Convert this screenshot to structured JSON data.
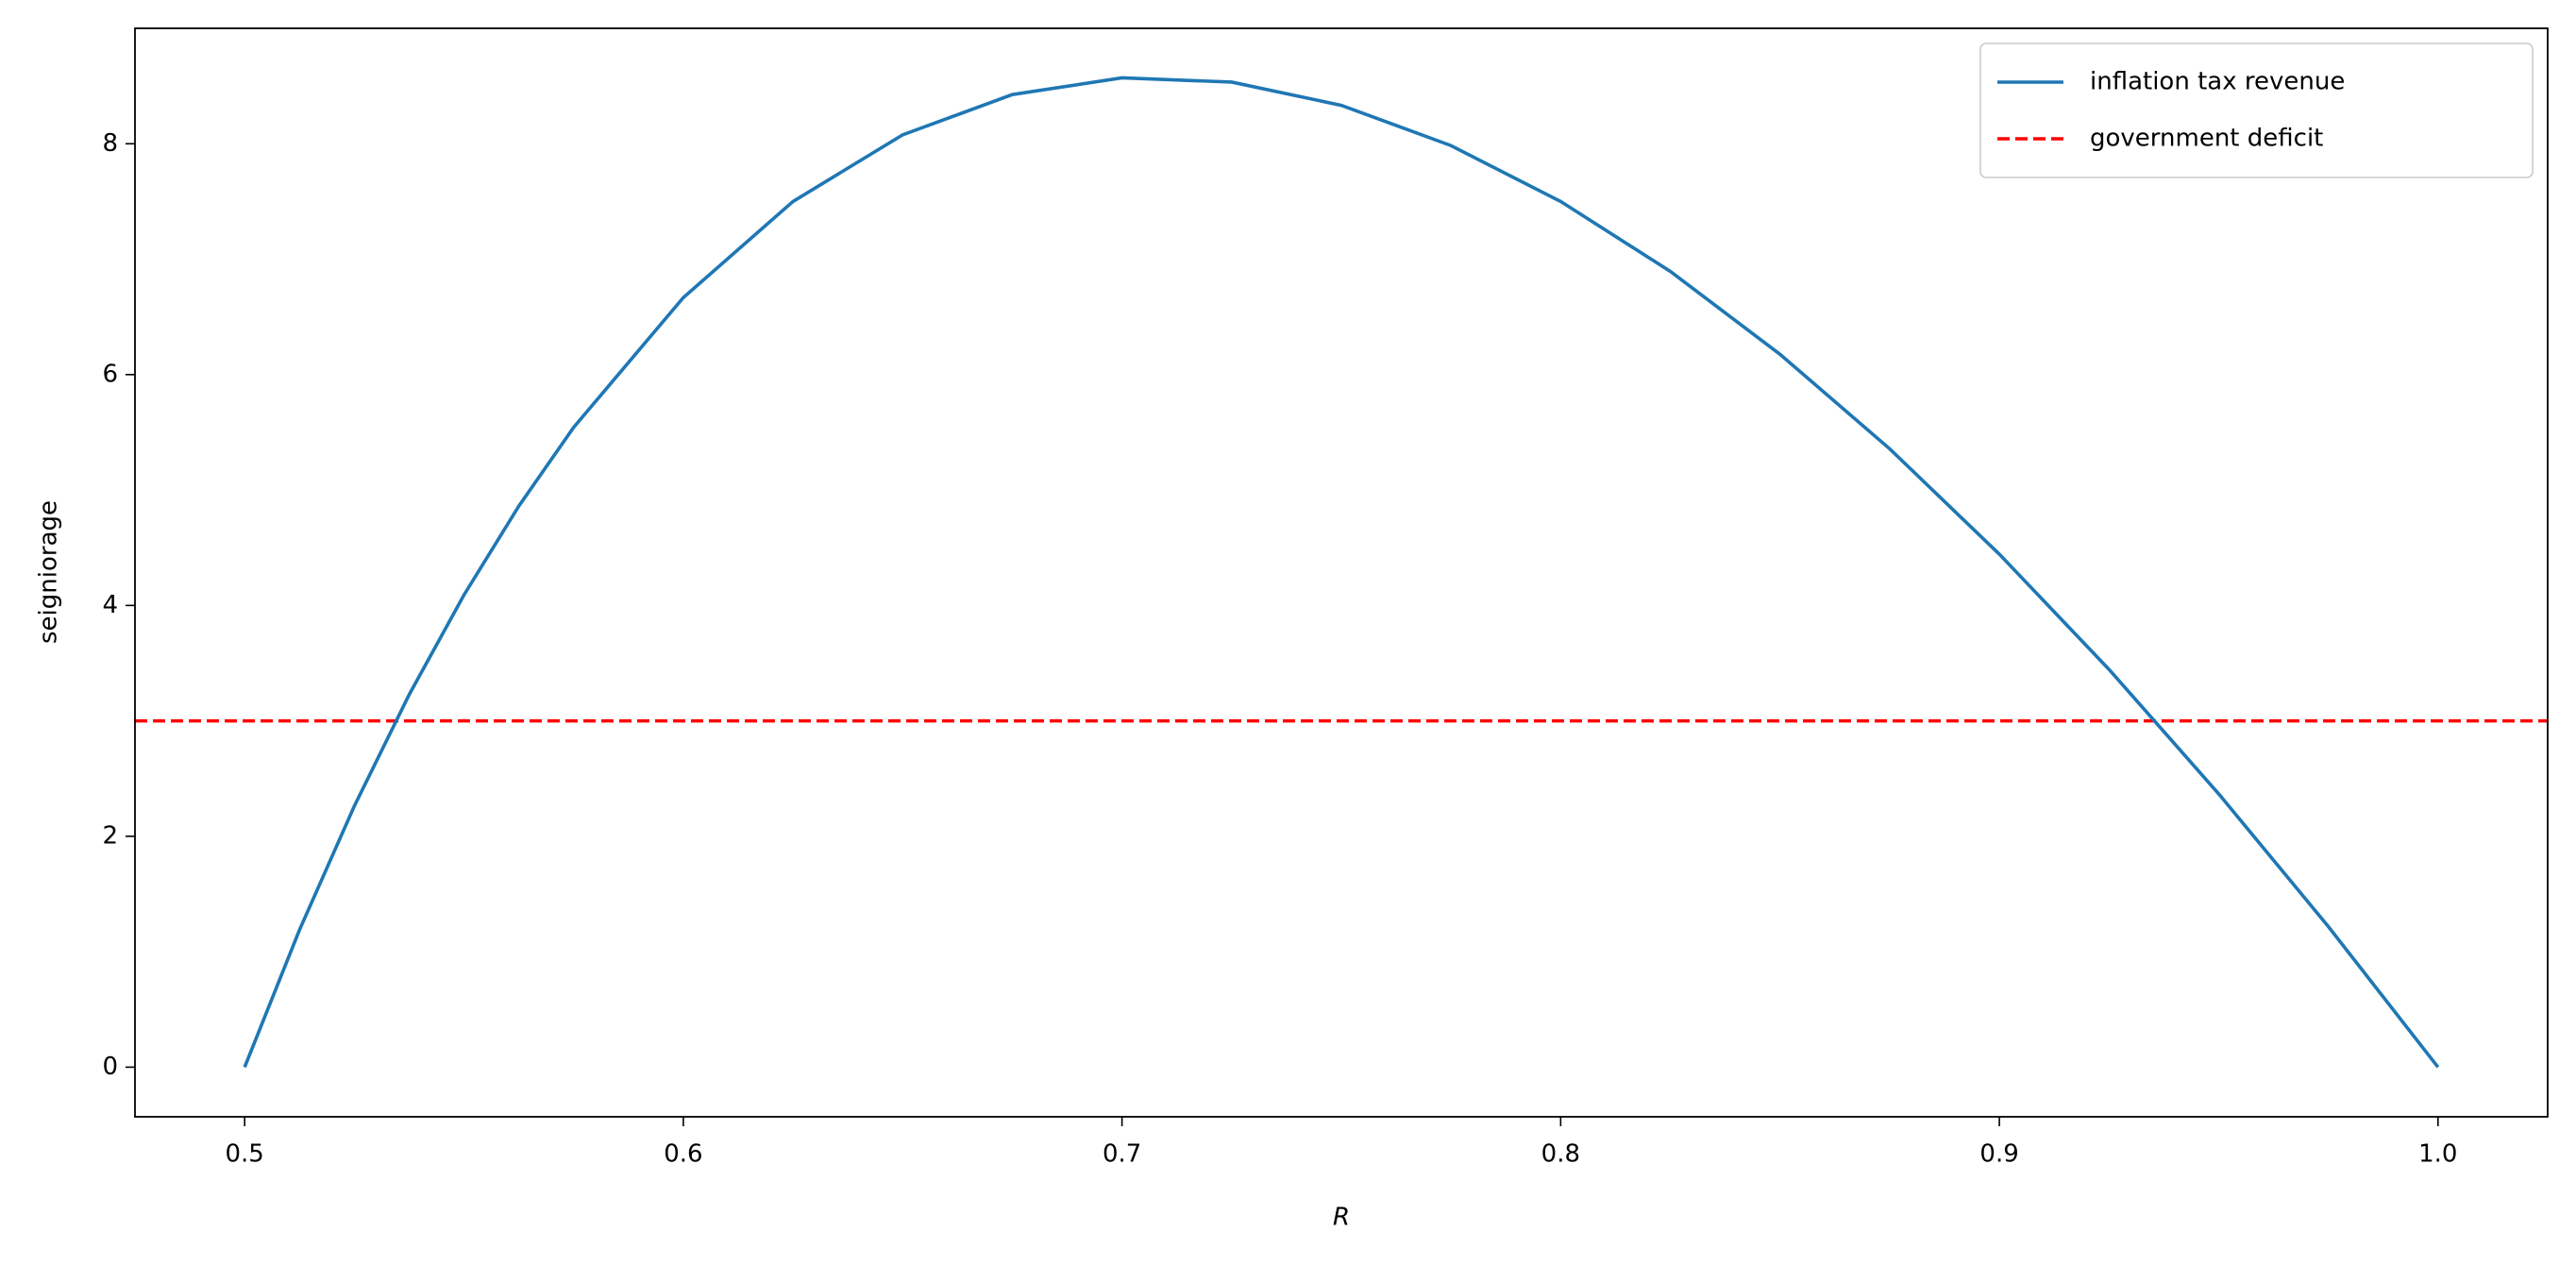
{
  "chart_data": {
    "type": "line",
    "xlabel": "R",
    "ylabel": "seigniorage",
    "x": [
      0.5,
      0.5125,
      0.525,
      0.5375,
      0.55,
      0.5625,
      0.575,
      0.6,
      0.625,
      0.65,
      0.675,
      0.7,
      0.725,
      0.75,
      0.775,
      0.8,
      0.825,
      0.85,
      0.875,
      0.9,
      0.925,
      0.95,
      0.975,
      1.0
    ],
    "series": [
      {
        "name": "inflation tax revenue",
        "color": "#1f77b4",
        "values": [
          0,
          1.189,
          2.262,
          3.227,
          4.091,
          4.861,
          5.543,
          6.667,
          7.5,
          8.077,
          8.426,
          8.571,
          8.534,
          8.333,
          7.984,
          7.5,
          6.894,
          6.176,
          5.357,
          4.444,
          3.446,
          2.368,
          1.218,
          0
        ]
      }
    ],
    "hlines": [
      {
        "name": "government deficit",
        "color": "#ff0000",
        "y": 3,
        "dashed": true
      }
    ],
    "xlim": [
      0.475,
      1.025
    ],
    "ylim": [
      -0.43,
      9.0
    ],
    "xticks": [
      0.5,
      0.6,
      0.7,
      0.8,
      0.9,
      {
        "value": 1.0,
        "label": "1.0"
      }
    ],
    "yticks": [
      0,
      2,
      4,
      6,
      8
    ],
    "grid": false,
    "legend": "upper right"
  }
}
